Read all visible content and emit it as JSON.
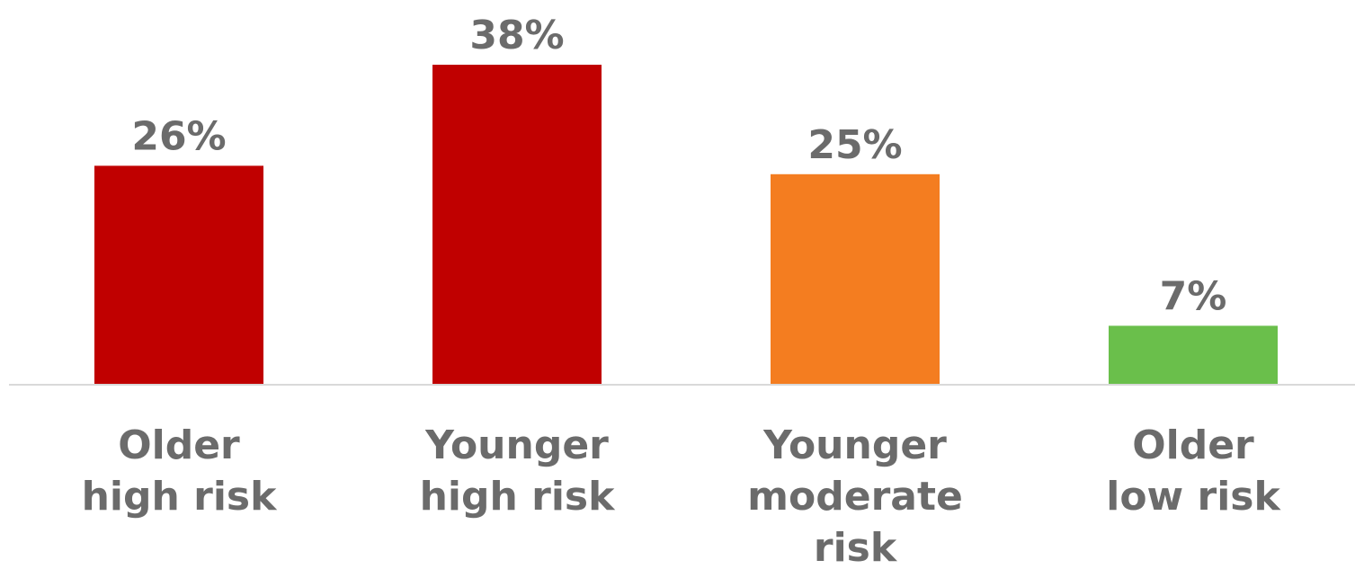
{
  "chart_data": {
    "type": "bar",
    "categories": [
      [
        "Older",
        "high risk"
      ],
      [
        "Younger",
        "high risk"
      ],
      [
        "Younger",
        "moderate",
        "risk"
      ],
      [
        "Older",
        "low risk"
      ]
    ],
    "values": [
      26,
      38,
      25,
      7
    ],
    "value_labels": [
      "26%",
      "38%",
      "25%",
      "7%"
    ],
    "bar_colors": [
      "#c00000",
      "#c00000",
      "#f47d20",
      "#6abf4b"
    ],
    "ylim": [
      0,
      38
    ],
    "grid": false,
    "legend": "none",
    "title": "",
    "xlabel": "",
    "ylabel": ""
  }
}
